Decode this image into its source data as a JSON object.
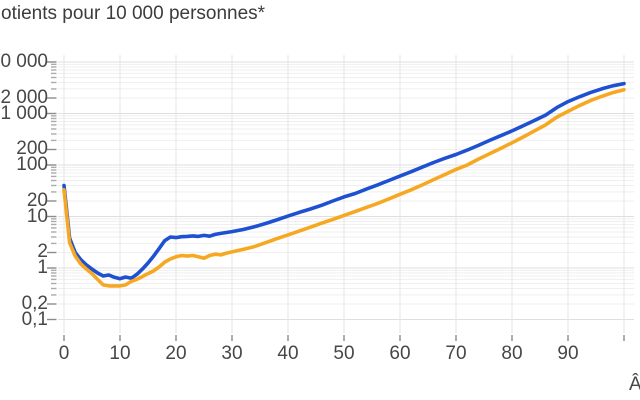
{
  "title": "otients pour 10 000 personnes*",
  "axis": {
    "x_axis_label_visible": "Â",
    "x_ticks": [
      {
        "label": "0",
        "value": 0
      },
      {
        "label": "10",
        "value": 10
      },
      {
        "label": "20",
        "value": 20
      },
      {
        "label": "30",
        "value": 30
      },
      {
        "label": "40",
        "value": 40
      },
      {
        "label": "50",
        "value": 50
      },
      {
        "label": "60",
        "value": 60
      },
      {
        "label": "70",
        "value": 70
      },
      {
        "label": "80",
        "value": 80
      },
      {
        "label": "90",
        "value": 90
      }
    ],
    "y_ticks": [
      {
        "label": "0 000",
        "value": 10000
      },
      {
        "label": "2 000",
        "value": 2000
      },
      {
        "label": "1 000",
        "value": 1000
      },
      {
        "label": "200",
        "value": 200
      },
      {
        "label": "100",
        "value": 100
      },
      {
        "label": "20",
        "value": 20
      },
      {
        "label": "10",
        "value": 10
      },
      {
        "label": "2",
        "value": 2
      },
      {
        "label": "1",
        "value": 1
      },
      {
        "label": "0,2",
        "value": 0.2
      },
      {
        "label": "0,1",
        "value": 0.1
      }
    ]
  },
  "colors": {
    "series_blue": "#1e50d2",
    "series_orange": "#f6a823",
    "grid_minor": "#efefef",
    "grid_major": "#dfdfdf",
    "grid_vertical": "#e4e4e4",
    "tick_minor": "#ababab",
    "tick_major": "#8c8c8c",
    "text": "#474747"
  },
  "chart_data": {
    "type": "line",
    "title": "otients pour 10 000 personnes*",
    "xlabel_visible": "Â",
    "y_scale": "log",
    "ylim": [
      0.1,
      10000
    ],
    "xlim": [
      0,
      100
    ],
    "x_gridlines_every": 10,
    "legend": "none",
    "series": [
      {
        "name": "blue",
        "color": "#1e50d2",
        "x": [
          0,
          1,
          2,
          3,
          4,
          5,
          6,
          7,
          8,
          9,
          10,
          11,
          12,
          13,
          14,
          15,
          16,
          17,
          18,
          19,
          20,
          21,
          22,
          23,
          24,
          25,
          26,
          27,
          28,
          29,
          30,
          32,
          34,
          36,
          38,
          40,
          42,
          44,
          46,
          48,
          50,
          52,
          54,
          56,
          58,
          60,
          62,
          64,
          66,
          68,
          70,
          72,
          74,
          76,
          78,
          80,
          82,
          84,
          86,
          88,
          90,
          92,
          94,
          96,
          98,
          100
        ],
        "values": [
          40,
          3.8,
          2.0,
          1.45,
          1.15,
          0.95,
          0.8,
          0.7,
          0.73,
          0.66,
          0.62,
          0.67,
          0.63,
          0.75,
          0.95,
          1.25,
          1.7,
          2.4,
          3.4,
          4.0,
          3.9,
          4.05,
          4.1,
          4.2,
          4.1,
          4.3,
          4.15,
          4.5,
          4.7,
          4.9,
          5.1,
          5.6,
          6.3,
          7.3,
          8.6,
          10.2,
          12,
          14,
          16.5,
          20,
          24,
          28,
          34,
          41,
          50,
          61,
          74,
          91,
          112,
          135,
          160,
          195,
          240,
          300,
          370,
          460,
          580,
          730,
          930,
          1300,
          1700,
          2100,
          2550,
          3000,
          3450,
          3800
        ]
      },
      {
        "name": "orange",
        "color": "#f6a823",
        "x": [
          0,
          1,
          2,
          3,
          4,
          5,
          6,
          7,
          8,
          9,
          10,
          11,
          12,
          13,
          14,
          15,
          16,
          17,
          18,
          19,
          20,
          21,
          22,
          23,
          24,
          25,
          26,
          27,
          28,
          29,
          30,
          32,
          34,
          36,
          38,
          40,
          42,
          44,
          46,
          48,
          50,
          52,
          54,
          56,
          58,
          60,
          62,
          64,
          66,
          68,
          70,
          72,
          74,
          76,
          78,
          80,
          82,
          84,
          86,
          88,
          90,
          92,
          94,
          96,
          98,
          100
        ],
        "values": [
          33,
          3.1,
          1.7,
          1.2,
          0.95,
          0.78,
          0.6,
          0.47,
          0.45,
          0.45,
          0.45,
          0.47,
          0.55,
          0.6,
          0.68,
          0.78,
          0.88,
          1.05,
          1.3,
          1.5,
          1.65,
          1.75,
          1.7,
          1.75,
          1.65,
          1.55,
          1.75,
          1.85,
          1.8,
          1.95,
          2.05,
          2.3,
          2.6,
          3.1,
          3.7,
          4.4,
          5.2,
          6.2,
          7.4,
          8.8,
          10.5,
          12.5,
          15,
          18,
          22,
          27,
          33,
          41,
          52,
          65,
          82,
          100,
          130,
          165,
          210,
          270,
          350,
          460,
          600,
          850,
          1100,
          1420,
          1780,
          2150,
          2550,
          2900
        ]
      }
    ]
  }
}
